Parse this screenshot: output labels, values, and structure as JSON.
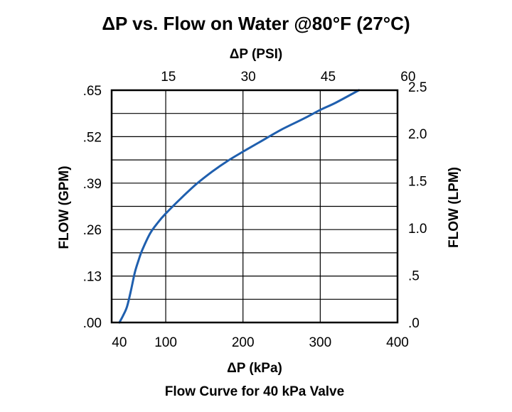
{
  "chart_data": {
    "type": "line",
    "title": "ΔP vs. Flow on Water @80°F (27°C)",
    "caption": "Flow Curve for 40 kPa Valve",
    "xlabel": "ΔP (kPa)",
    "x2label": "ΔP (PSI)",
    "ylabel": "FLOW (GPM)",
    "y2label": "FLOW (LPM)",
    "xlim": [
      30,
      400
    ],
    "ylim": [
      0,
      0.65
    ],
    "x_ticks": [
      {
        "value": 40,
        "label": "40"
      },
      {
        "value": 100,
        "label": "100"
      },
      {
        "value": 200,
        "label": "200"
      },
      {
        "value": 300,
        "label": "300"
      },
      {
        "value": 400,
        "label": "400"
      }
    ],
    "x2_ticks": [
      {
        "value": 15,
        "label": "15"
      },
      {
        "value": 30,
        "label": "30"
      },
      {
        "value": 45,
        "label": "45"
      },
      {
        "value": 60,
        "label": "60"
      }
    ],
    "y_ticks": [
      {
        "value": 0,
        "label": ".00"
      },
      {
        "value": 0.13,
        "label": ".13"
      },
      {
        "value": 0.26,
        "label": ".26"
      },
      {
        "value": 0.39,
        "label": ".39"
      },
      {
        "value": 0.52,
        "label": ".52"
      },
      {
        "value": 0.65,
        "label": ".65"
      }
    ],
    "y2_ticks": [
      {
        "value": 0,
        "label": ".0"
      },
      {
        "value": 0.5,
        "label": ".5"
      },
      {
        "value": 1.0,
        "label": "1.0"
      },
      {
        "value": 1.5,
        "label": "1.5"
      },
      {
        "value": 2.0,
        "label": "2.0"
      },
      {
        "value": 2.5,
        "label": "2.5"
      }
    ],
    "grid": true,
    "series": [
      {
        "color": "#1f5fae",
        "x": [
          40,
          45,
          50,
          55,
          60,
          65,
          70,
          80,
          90,
          100,
          120,
          140,
          160,
          180,
          200,
          220,
          250,
          280,
          300,
          320,
          350
        ],
        "y": [
          0,
          0.02,
          0.045,
          0.09,
          0.14,
          0.175,
          0.205,
          0.25,
          0.28,
          0.305,
          0.348,
          0.388,
          0.422,
          0.452,
          0.478,
          0.503,
          0.54,
          0.572,
          0.595,
          0.615,
          0.65
        ]
      }
    ]
  }
}
